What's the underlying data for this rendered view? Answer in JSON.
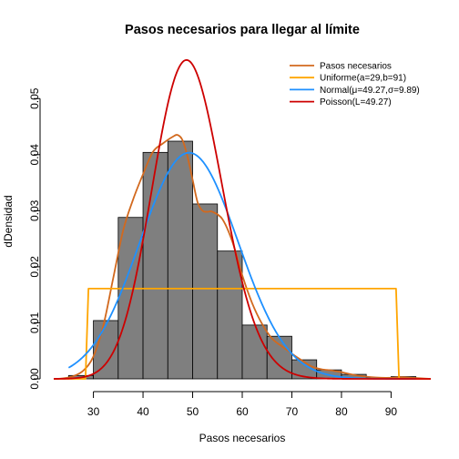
{
  "chart_data": {
    "type": "histogram",
    "title": "Pasos necesarios para llegar al límite",
    "xlabel": "Pasos necesarios",
    "ylabel": "dDensidad",
    "xlim": [
      22,
      98
    ],
    "ylim": [
      0,
      0.058
    ],
    "x_ticks": [
      30,
      40,
      50,
      60,
      70,
      80,
      90
    ],
    "y_ticks": [
      0.0,
      0.01,
      0.02,
      0.03,
      0.04,
      0.05
    ],
    "y_tick_labels": [
      "0.00",
      "0.01",
      "0.02",
      "0.03",
      "0.04",
      "0.05"
    ],
    "bar_color": "#7f7f7f",
    "bars": [
      {
        "x0": 25,
        "x1": 30,
        "density": 0.0006
      },
      {
        "x0": 30,
        "x1": 35,
        "density": 0.0104
      },
      {
        "x0": 35,
        "x1": 40,
        "density": 0.0288
      },
      {
        "x0": 40,
        "x1": 45,
        "density": 0.0404
      },
      {
        "x0": 45,
        "x1": 50,
        "density": 0.0424
      },
      {
        "x0": 50,
        "x1": 55,
        "density": 0.0312
      },
      {
        "x0": 55,
        "x1": 60,
        "density": 0.0228
      },
      {
        "x0": 60,
        "x1": 65,
        "density": 0.0096
      },
      {
        "x0": 65,
        "x1": 70,
        "density": 0.0076
      },
      {
        "x0": 70,
        "x1": 75,
        "density": 0.0034
      },
      {
        "x0": 75,
        "x1": 80,
        "density": 0.0016
      },
      {
        "x0": 80,
        "x1": 85,
        "density": 0.0008
      },
      {
        "x0": 85,
        "x1": 90,
        "density": 0.0002
      },
      {
        "x0": 90,
        "x1": 95,
        "density": 0.0004
      }
    ],
    "series": [
      {
        "name": "Pasos necesarios",
        "color": "#d2691e",
        "x": [
          22,
          24,
          26,
          28,
          30,
          32,
          34,
          36,
          38,
          40,
          42,
          44,
          46,
          47,
          48,
          49,
          50,
          51,
          52,
          53,
          54,
          56,
          58,
          60,
          62,
          64,
          66,
          68,
          70,
          72,
          74,
          76,
          78,
          80,
          82,
          84,
          86,
          88,
          90,
          92,
          94,
          96,
          98
        ],
        "y": [
          0.0,
          0.0001,
          0.0005,
          0.0015,
          0.004,
          0.0095,
          0.018,
          0.0265,
          0.032,
          0.0365,
          0.0405,
          0.042,
          0.0432,
          0.0435,
          0.0425,
          0.0395,
          0.0355,
          0.0315,
          0.03,
          0.0298,
          0.0298,
          0.0285,
          0.0245,
          0.0185,
          0.0135,
          0.0098,
          0.0072,
          0.0058,
          0.0045,
          0.0033,
          0.0022,
          0.0017,
          0.0015,
          0.0012,
          0.0008,
          0.0005,
          0.0003,
          0.0002,
          0.0002,
          0.0003,
          0.0002,
          0.0001,
          0.0
        ]
      },
      {
        "name": "Uniforme(a=29,b=91)",
        "color": "#ffa500",
        "x": [
          22,
          28.4,
          29,
          91,
          91.6,
          98
        ],
        "y": [
          0.0,
          0.0,
          0.0161,
          0.0161,
          0.0,
          0.0
        ]
      },
      {
        "name": "Normal(μ=49.27,σ=9.89)",
        "color": "#1e90ff",
        "mu": 49.27,
        "sigma": 9.89,
        "x_range": [
          25,
          95
        ]
      },
      {
        "name": "Poisson(L=49.27)",
        "color": "#cd0000",
        "lambda": 49.27,
        "x_range": [
          22,
          98
        ]
      }
    ],
    "legend_position": "top-right",
    "grid": false
  }
}
